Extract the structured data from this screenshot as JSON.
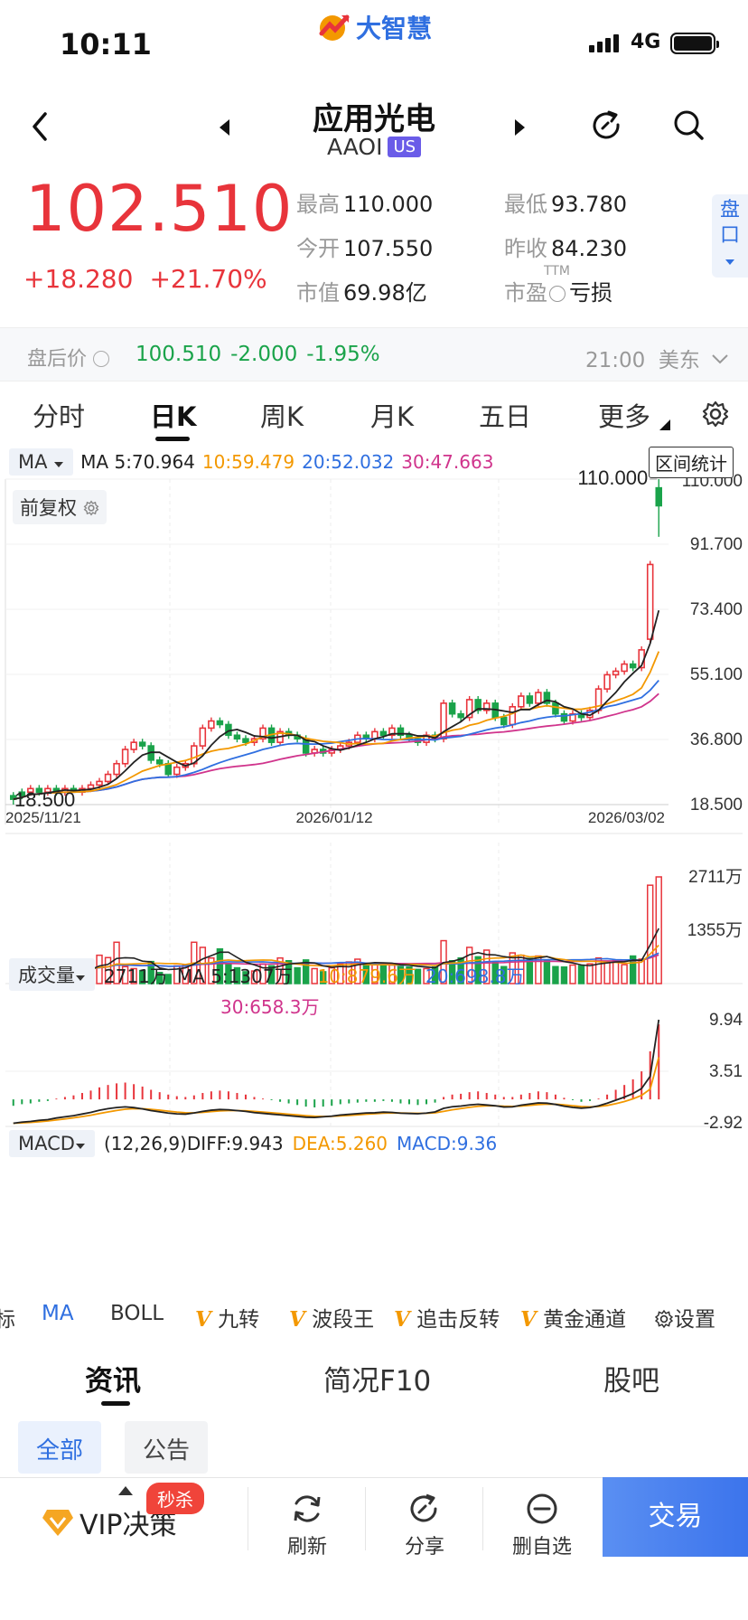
{
  "status": {
    "time": "10:11",
    "network": "4G"
  },
  "brand": {
    "name": "大智慧"
  },
  "header": {
    "name": "应用光电",
    "code": "AAOI",
    "market": "US"
  },
  "quote": {
    "price": "102.510",
    "change": "+18.280",
    "change_pct": "+21.70%",
    "high_label": "最高",
    "high": "110.000",
    "low_label": "最低",
    "low": "93.780",
    "open_label": "今开",
    "open": "107.550",
    "prev_label": "昨收",
    "prev": "84.230",
    "mcap_label": "市值",
    "mcap": "69.98亿",
    "pe_label": "市盈",
    "pe_sup": "TTM",
    "pe": "亏损",
    "pankou": "盘口"
  },
  "after_hours": {
    "label": "盘后价",
    "price": "100.510",
    "change": "-2.000",
    "pct": "-1.95%",
    "time": "21:00",
    "zone": "美东"
  },
  "tabs": [
    "分时",
    "日K",
    "周K",
    "月K",
    "五日",
    "更多"
  ],
  "main_chart": {
    "indicator": "MA",
    "ma5": "MA 5:70.964",
    "ma10": "10:59.479",
    "ma20": "20:52.032",
    "ma30": "30:47.663",
    "adjust": "前复权",
    "range_stats": "区间统计",
    "high_mark": "110.000",
    "low_mark": "18.500",
    "y_labels": [
      "110.000",
      "91.700",
      "73.400",
      "55.100",
      "36.800",
      "18.500"
    ],
    "x_labels": [
      "2025/11/21",
      "2026/01/12",
      "2026/03/02"
    ]
  },
  "volume_chart": {
    "indicator": "成交量",
    "vol": "2711万",
    "ma5": "MA 5:1307万",
    "ma10": "10:879.6万",
    "ma20": "20:698.8万",
    "ma30": "30:658.3万",
    "y_labels": [
      "2711万",
      "1355万"
    ]
  },
  "macd_chart": {
    "indicator": "MACD",
    "diff": "(12,26,9)DIFF:9.943",
    "dea": "DEA:5.260",
    "macd": "MACD:9.36",
    "y_labels": [
      "9.94",
      "3.51",
      "-2.92"
    ]
  },
  "indicators": {
    "cut": "标",
    "ma": "MA",
    "boll": "BOLL",
    "v1": "九转",
    "v2": "波段王",
    "v3": "追击反转",
    "v4": "黄金通道",
    "settings": "设置"
  },
  "news_tabs": [
    "资讯",
    "简况F10",
    "股吧"
  ],
  "filters": [
    "全部",
    "公告"
  ],
  "bottom": {
    "vip": "VIP决策",
    "promo": "秒杀",
    "refresh": "刷新",
    "share": "分享",
    "remove": "删自选",
    "trade": "交易"
  },
  "colors": {
    "up": "#e8343b",
    "down": "#1aa34a",
    "ma5": "#222222",
    "ma10": "#f39800",
    "ma20": "#2f6fe0",
    "ma30": "#d0348c",
    "accent": "#2f6fe0"
  },
  "chart_data": [
    {
      "type": "candlestick",
      "title": "",
      "x_ticks": [
        "2025/11/21",
        "2026/01/12",
        "2026/03/02"
      ],
      "ylim": [
        18.5,
        110.0
      ],
      "ohlc": [
        [
          21,
          20,
          22,
          18.5
        ],
        [
          22,
          21,
          23,
          20
        ],
        [
          22,
          23,
          24,
          21
        ],
        [
          23,
          22,
          24,
          21
        ],
        [
          22,
          23,
          24,
          21
        ],
        [
          23,
          22,
          24,
          21
        ],
        [
          22,
          23,
          24,
          21
        ],
        [
          23,
          22,
          24,
          22
        ],
        [
          22,
          23,
          24,
          21
        ],
        [
          23,
          24,
          25,
          22
        ],
        [
          24,
          25,
          26,
          23
        ],
        [
          25,
          27,
          28,
          24
        ],
        [
          27,
          30,
          31,
          26
        ],
        [
          30,
          34,
          35,
          29
        ],
        [
          34,
          36,
          37,
          33
        ],
        [
          36,
          35,
          37,
          34
        ],
        [
          35,
          31,
          36,
          30
        ],
        [
          31,
          30,
          32,
          29
        ],
        [
          30,
          27,
          31,
          26
        ],
        [
          27,
          29,
          30,
          26
        ],
        [
          29,
          30,
          31,
          28
        ],
        [
          30,
          35,
          36,
          29
        ],
        [
          35,
          40,
          41,
          34
        ],
        [
          40,
          42,
          43,
          39
        ],
        [
          42,
          41,
          43,
          40
        ],
        [
          41,
          38,
          42,
          37
        ],
        [
          38,
          37,
          39,
          36
        ],
        [
          37,
          36,
          38,
          35
        ],
        [
          36,
          37,
          38,
          35
        ],
        [
          37,
          40,
          41,
          36
        ],
        [
          40,
          36,
          41,
          35
        ],
        [
          36,
          39,
          40,
          35
        ],
        [
          39,
          38,
          40,
          37
        ],
        [
          38,
          37,
          39,
          36
        ],
        [
          37,
          33,
          38,
          32
        ],
        [
          33,
          34,
          35,
          32
        ],
        [
          34,
          33,
          35,
          32
        ],
        [
          33,
          34,
          35,
          32
        ],
        [
          34,
          35,
          36,
          33
        ],
        [
          35,
          36,
          37,
          34
        ],
        [
          36,
          38,
          39,
          35
        ],
        [
          38,
          37,
          39,
          36
        ],
        [
          37,
          39,
          40,
          36
        ],
        [
          39,
          38,
          40,
          37
        ],
        [
          38,
          40,
          41,
          37
        ],
        [
          40,
          38,
          41,
          37
        ],
        [
          38,
          37,
          39,
          36
        ],
        [
          37,
          36,
          38,
          35
        ],
        [
          36,
          38,
          39,
          35
        ],
        [
          38,
          37,
          39,
          36
        ],
        [
          37,
          47,
          48,
          36
        ],
        [
          47,
          44,
          48,
          43
        ],
        [
          44,
          43,
          45,
          42
        ],
        [
          43,
          48,
          49,
          42
        ],
        [
          48,
          45,
          49,
          44
        ],
        [
          45,
          47,
          48,
          44
        ],
        [
          47,
          43,
          48,
          42
        ],
        [
          43,
          41,
          44,
          40
        ],
        [
          41,
          46,
          47,
          40
        ],
        [
          46,
          49,
          50,
          45
        ],
        [
          49,
          47,
          50,
          46
        ],
        [
          47,
          50,
          51,
          46
        ],
        [
          50,
          47,
          51,
          46
        ],
        [
          47,
          44,
          48,
          43
        ],
        [
          44,
          42,
          45,
          41
        ],
        [
          42,
          44,
          45,
          41
        ],
        [
          44,
          43,
          45,
          42
        ],
        [
          43,
          45,
          46,
          42
        ],
        [
          45,
          51,
          52,
          44
        ],
        [
          51,
          55,
          56,
          50
        ],
        [
          55,
          56,
          57,
          54
        ],
        [
          56,
          58,
          59,
          55
        ],
        [
          58,
          57,
          59,
          56
        ],
        [
          57,
          62,
          63,
          56
        ],
        [
          65,
          86,
          87,
          64
        ],
        [
          107.55,
          102.51,
          110,
          93.78
        ]
      ],
      "ma": {
        "MA5": 70.964,
        "MA10": 59.479,
        "MA20": 52.032,
        "MA30": 47.663
      }
    },
    {
      "type": "bar",
      "title": "",
      "unit": "万",
      "ylim": [
        0,
        2711
      ],
      "values": [
        320,
        520,
        330,
        480,
        300,
        250,
        460,
        300,
        340,
        420,
        720,
        660,
        1050,
        430,
        380,
        330,
        560,
        280,
        230,
        450,
        480,
        1050,
        920,
        650,
        880,
        480,
        400,
        300,
        320,
        500,
        450,
        650,
        580,
        400,
        600,
        380,
        300,
        400,
        500,
        550,
        620,
        480,
        520,
        470,
        510,
        430,
        420,
        360,
        380,
        420,
        1090,
        580,
        650,
        920,
        680,
        850,
        540,
        430,
        780,
        720,
        640,
        700,
        600,
        430,
        420,
        470,
        450,
        500,
        650,
        550,
        600,
        480,
        700,
        620,
        2500,
        2711
      ],
      "up": [
        1,
        0,
        1,
        0,
        1,
        0,
        1,
        0,
        1,
        1,
        1,
        1,
        1,
        1,
        1,
        0,
        0,
        0,
        0,
        1,
        1,
        1,
        1,
        1,
        0,
        0,
        0,
        0,
        1,
        1,
        0,
        1,
        0,
        0,
        0,
        1,
        0,
        1,
        1,
        1,
        1,
        0,
        1,
        0,
        1,
        0,
        0,
        0,
        1,
        0,
        1,
        0,
        0,
        1,
        0,
        1,
        0,
        0,
        1,
        1,
        0,
        1,
        0,
        0,
        0,
        1,
        0,
        1,
        1,
        1,
        1,
        1,
        0,
        1,
        1,
        1
      ],
      "ma": {
        "MA5": 1307,
        "MA10": 879.6,
        "MA20": 698.8,
        "MA30": 658.3
      }
    },
    {
      "type": "bar",
      "title": "",
      "ylim": [
        -2.92,
        9.94
      ],
      "macd": [
        -0.8,
        -0.6,
        -0.5,
        -0.3,
        -0.2,
        0.1,
        0.3,
        0.5,
        0.8,
        1.1,
        1.5,
        1.8,
        2.0,
        2.1,
        1.9,
        1.6,
        1.2,
        0.9,
        0.6,
        0.4,
        0.3,
        0.5,
        0.8,
        1.0,
        1.1,
        1.0,
        0.8,
        0.6,
        0.3,
        0.1,
        -0.1,
        -0.3,
        -0.5,
        -0.7,
        -0.9,
        -1.0,
        -0.9,
        -0.8,
        -0.6,
        -0.5,
        -0.4,
        -0.3,
        -0.3,
        -0.2,
        -0.3,
        -0.5,
        -0.6,
        -0.7,
        -0.6,
        -0.4,
        0.3,
        0.6,
        0.7,
        0.9,
        1.0,
        0.8,
        0.6,
        0.3,
        0.3,
        0.6,
        0.8,
        1.0,
        0.9,
        0.6,
        0.2,
        -0.1,
        -0.3,
        -0.2,
        0.1,
        0.6,
        1.2,
        1.8,
        2.5,
        3.5,
        6.0,
        9.36
      ],
      "diff": 9.943,
      "dea": 5.26
    }
  ]
}
